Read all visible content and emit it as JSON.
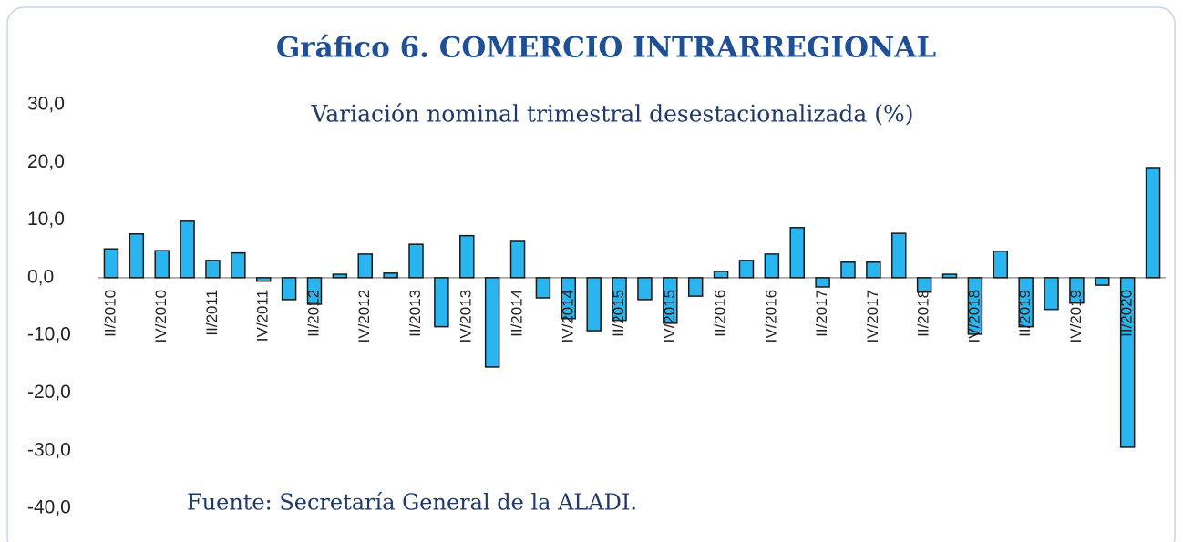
{
  "chart_data": {
    "type": "bar",
    "title": "Gráfico 6. COMERCIO INTRARREGIONAL",
    "subtitle": "Variación nominal trimestral desestacionalizada (%)",
    "source": "Fuente: Secretaría General de la ALADI.",
    "categories": [
      "II/2010",
      null,
      "IV/2010",
      null,
      "II/2011",
      null,
      "IV/2011",
      null,
      "II/2012",
      null,
      "IV/2012",
      null,
      "II/2013",
      null,
      "IV/2013",
      null,
      "II/2014",
      null,
      "IV/2014",
      null,
      "II/2015",
      null,
      "IV/2015",
      null,
      "II/2016",
      null,
      "IV/2016",
      null,
      "II/2017",
      null,
      "IV/2017",
      null,
      "II/2018",
      null,
      "IV/2018",
      null,
      "II/2019",
      null,
      "IV/2019",
      null,
      "II/2020",
      null
    ],
    "values": [
      5.0,
      7.6,
      4.7,
      9.8,
      3.0,
      4.3,
      -0.6,
      -3.8,
      -4.6,
      0.6,
      4.1,
      0.8,
      5.8,
      -8.5,
      7.3,
      -15.5,
      6.3,
      -3.5,
      -7.1,
      -9.2,
      -7.4,
      -3.8,
      -7.9,
      -3.2,
      1.1,
      3.0,
      4.1,
      8.7,
      -1.6,
      2.7,
      2.7,
      7.7,
      -2.5,
      0.6,
      -9.8,
      4.6,
      -8.5,
      -5.5,
      -4.4,
      -1.3,
      -29.4,
      19.1
    ],
    "color": "#29b6f0",
    "ylim": [
      -40,
      30
    ],
    "yticks": [
      {
        "value": -40,
        "label": "-40,0"
      },
      {
        "value": -30,
        "label": "-30,0"
      },
      {
        "value": -20,
        "label": "-20,0"
      },
      {
        "value": -10,
        "label": "-10,0"
      },
      {
        "value": 0,
        "label": "0,0"
      },
      {
        "value": 10,
        "label": "10,0"
      },
      {
        "value": 20,
        "label": "20,0"
      },
      {
        "value": 30,
        "label": "30,0"
      }
    ],
    "grid": false
  }
}
